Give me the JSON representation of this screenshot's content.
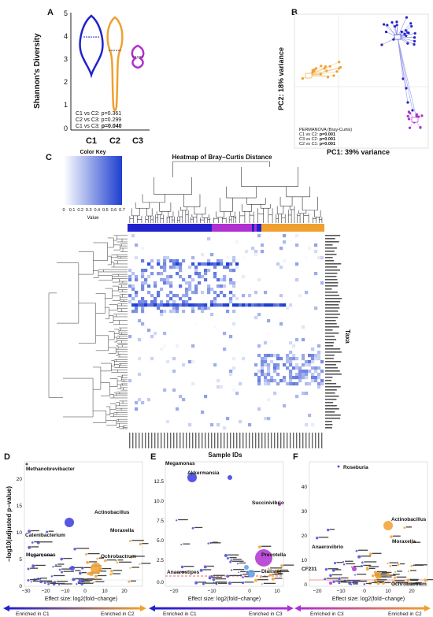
{
  "panels": {
    "A": {
      "letter": "A",
      "ylabel": "Shannon's Diversity",
      "y_ticks": [
        "5",
        "4",
        "3",
        "2",
        "1",
        "0"
      ],
      "groups": [
        "C1",
        "C2",
        "C3"
      ],
      "colors": [
        "#2222cc",
        "#f0a030",
        "#b030d0"
      ],
      "stats": [
        "C1 vs C2: p=0.361",
        "C2 vs C3: p=0.299",
        "C1 vs C3: "
      ],
      "stat_bold": "p=0.040"
    },
    "B": {
      "letter": "B",
      "xlabel": "PC1: 39% variance",
      "ylabel": "PC2: 18% variance",
      "permanova_title": "PERMANOVA (Bray-Curtis)",
      "tests": [
        {
          "label": "C1 vs C2: ",
          "p": "p=0.001"
        },
        {
          "label": "C3 vs C2: ",
          "p": "p=0.001"
        },
        {
          "label": "C2 vs C1: ",
          "p": "p=0.001"
        }
      ]
    },
    "C": {
      "letter": "C",
      "color_key_title": "Color Key",
      "color_key_ticks": [
        "0",
        "0.1",
        "0.2",
        "0.3",
        "0.4",
        "0.5",
        "0.6",
        "0.7"
      ],
      "color_key_label": "Value",
      "title": "Heatmap of Bray−Curtis Distance",
      "xlabel": "Sample IDs",
      "ylabel": "Taxa"
    },
    "D": {
      "letter": "D",
      "ylabel": "−log10(adjusted p−value)",
      "xlabel": "Effect size: log2(fold−change)",
      "x_ticks": [
        "−30",
        "−20",
        "−10",
        "0",
        "10",
        "20"
      ],
      "y_ticks": [
        "0",
        "5",
        "10",
        "15",
        "20"
      ],
      "labels": [
        {
          "text": "Methanobrevibacter",
          "bold": true
        },
        {
          "text": "Actinobacillus",
          "bold": true
        },
        {
          "text": "Catenibacterium",
          "bold": true
        },
        {
          "text": "Moraxella",
          "bold": true
        },
        {
          "text": "Megamonas",
          "bold": true
        },
        {
          "text": "Ochrobactrum",
          "bold": true
        }
      ],
      "enriched_left": "Enriched in C1",
      "enriched_right": "Enriched in C2"
    },
    "E": {
      "letter": "E",
      "xlabel": "Effect size: log2(fold−change)",
      "x_ticks": [
        "−20",
        "−10",
        "0",
        "10"
      ],
      "y_ticks": [
        "0.0",
        "2.5",
        "5.0",
        "7.5",
        "10.0",
        "12.5"
      ],
      "labels": [
        {
          "text": "Megamonas",
          "bold": true
        },
        {
          "text": "Akkermansia",
          "bold": true
        },
        {
          "text": "Succinivibrio",
          "bold": true
        },
        {
          "text": "Prevotella",
          "bold": true
        },
        {
          "text": "Anaerostipes",
          "bold": true
        },
        {
          "text": "Dialister",
          "bold": true
        }
      ],
      "enriched_left": "Enriched in C1",
      "enriched_right": "Enriched in C3"
    },
    "F": {
      "letter": "F",
      "xlabel": "Effect size: log2(fold−change)",
      "x_ticks": [
        "−20",
        "−10",
        "0",
        "10",
        "20"
      ],
      "y_ticks": [
        "0",
        "10",
        "20",
        "30",
        "40"
      ],
      "labels": [
        {
          "text": "Roseburia",
          "bold": true
        },
        {
          "text": "Actinobacillus",
          "bold": true
        },
        {
          "text": "Moraxella",
          "bold": true
        },
        {
          "text": "Anaerovibrio",
          "bold": true
        },
        {
          "text": "CF231",
          "bold": true
        },
        {
          "text": "Ochrobactrum",
          "bold": true
        }
      ],
      "enriched_left": "Enriched in C3",
      "enriched_right": "Enriched in C2"
    }
  },
  "colors": {
    "c1": "#2222cc",
    "c2": "#f0a030",
    "c3": "#b030d0",
    "heat_dark": "#1e3fd0",
    "heat_light": "#e8eefc"
  }
}
